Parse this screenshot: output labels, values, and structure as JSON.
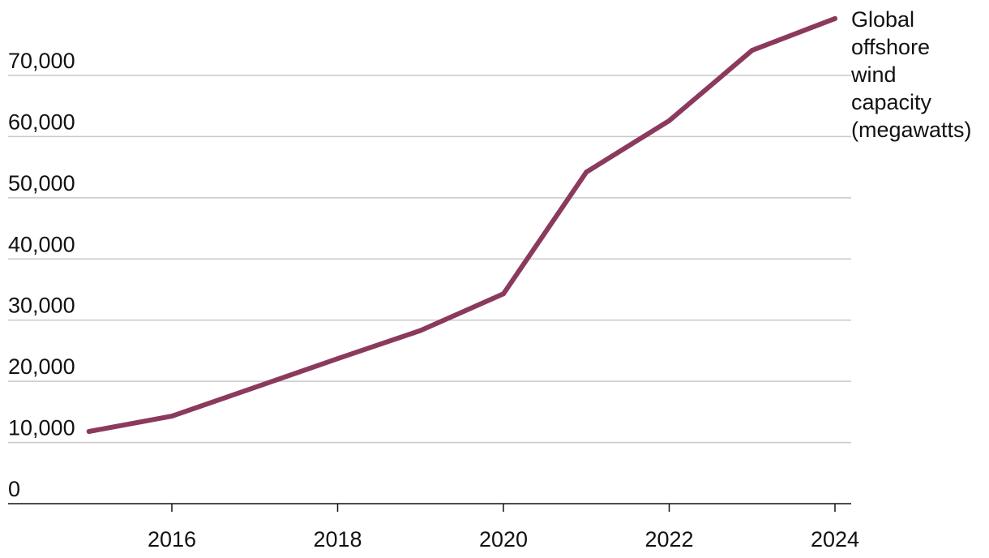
{
  "chart_data": {
    "type": "line",
    "title": "",
    "xlabel": "",
    "ylabel": "",
    "x": [
      2015,
      2016,
      2017,
      2018,
      2019,
      2020,
      2021,
      2022,
      2023,
      2024
    ],
    "series": [
      {
        "name": "Global offshore wind capacity (megawatts)",
        "label_lines": [
          "Global",
          "offshore",
          "wind",
          "capacity",
          "(megawatts)"
        ],
        "values": [
          11800,
          14300,
          19000,
          23700,
          28300,
          34300,
          54200,
          62600,
          74100,
          79300
        ],
        "color": "#8B3A5E"
      }
    ],
    "yticks": [
      0,
      10000,
      20000,
      30000,
      40000,
      50000,
      60000,
      70000
    ],
    "ytick_labels": [
      "0",
      "10,000",
      "20,000",
      "30,000",
      "40,000",
      "50,000",
      "60,000",
      "70,000"
    ],
    "xticks": [
      2016,
      2018,
      2020,
      2022,
      2024
    ],
    "xtick_labels": [
      "2016",
      "2018",
      "2020",
      "2022",
      "2024"
    ],
    "xlim": [
      2014.02,
      2024.2
    ],
    "ylim": [
      0,
      80000
    ],
    "grid": true,
    "legend": "direct label at end of line"
  }
}
